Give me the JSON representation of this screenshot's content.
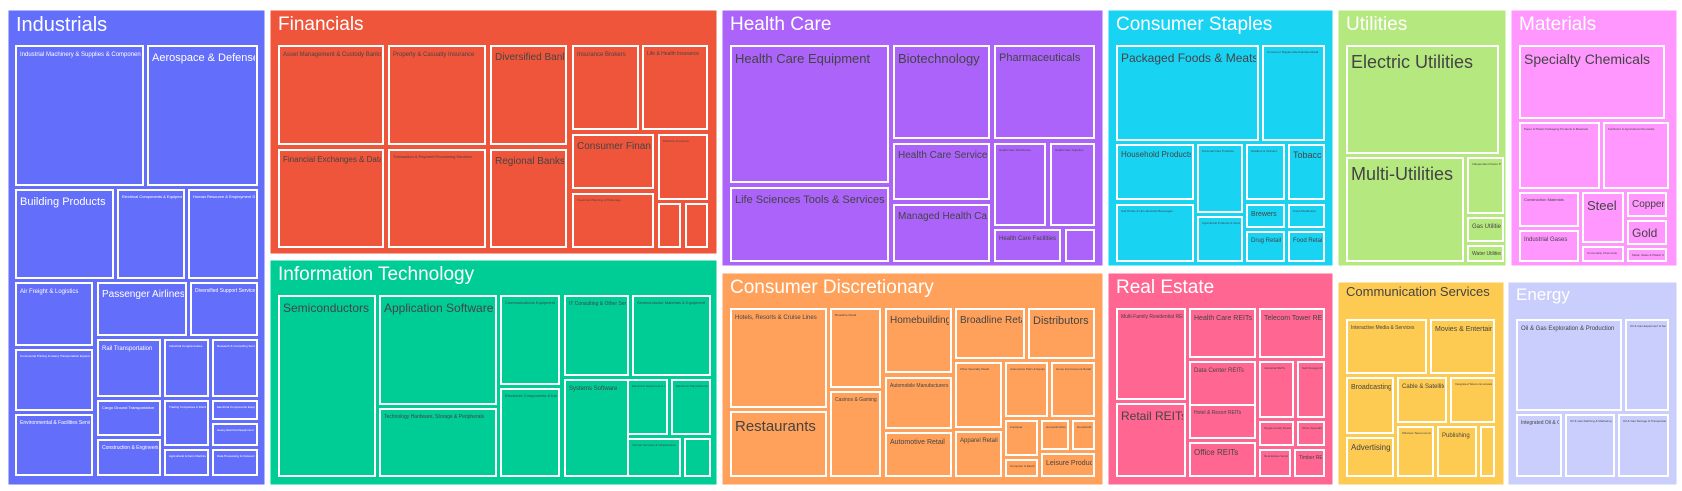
{
  "chart_data": {
    "type": "treemap",
    "title": "",
    "sectors": [
      {
        "name": "Industrials",
        "color": "#636efa",
        "label_color": "#ffffff",
        "industries": [
          "Industrial Machinery & Supplies & Components",
          "Aerospace & Defense",
          "Building Products",
          "Electrical Components & Equipment",
          "Human Resource & Employment Services",
          "Air Freight & Logistics",
          "Passenger Airlines",
          "Diversified Support Services",
          "Commercial Printing & Heavy Transportation Equipment",
          "Rail Transportation",
          "Industrial Conglomerates",
          "Research & Consulting Services",
          "Cargo Ground Transportation",
          "Trading Companies & Distributors",
          "Environmental & Facilities Services",
          "Construction & Engineering",
          "Agricultural & Farm Machinery",
          "Electrical Components Equipment",
          "Heavy Electrical Equipment",
          "Data Processing & Outsourced Services"
        ]
      },
      {
        "name": "Financials",
        "color": "#ef553b",
        "label_color": "#ffffff",
        "industries": [
          "Asset Management & Custody Banks",
          "Property & Casualty Insurance",
          "Diversified Banks",
          "Insurance Brokers",
          "Life & Health Insurance",
          "Financial Exchanges & Data",
          "Transaction & Payment Processing Services",
          "Regional Banks",
          "Consumer Finance",
          "Multi-line Insurance",
          "Investment Banking & Brokerage",
          "",
          ""
        ]
      },
      {
        "name": "Health Care",
        "color": "#ab63fa",
        "label_color": "#ffffff",
        "industries": [
          "Health Care Equipment",
          "Biotechnology",
          "Pharmaceuticals",
          "Life Sciences Tools & Services",
          "Health Care Services",
          "Managed Health Care",
          "Health Care Distributors",
          "Health Care Supplies",
          "Health Care Facilities",
          "Health Care Technology"
        ]
      },
      {
        "name": "Consumer Staples",
        "color": "#19d3f3",
        "label_color": "#ffffff",
        "industries": [
          "Packaged Foods & Meats",
          "Consumer Staples Merchandise Retail",
          "Household Products",
          "Personal Care Products",
          "Distillers & Vintners",
          "Tobacco",
          "Soft Drinks & Non-alcoholic Beverages",
          "Agricultural Products & Services",
          "Brewers",
          "Food Distributors",
          "Drug Retail",
          "Food Retail"
        ]
      },
      {
        "name": "Utilities",
        "color": "#b6e880",
        "label_color": "#ffffff",
        "industries": [
          "Electric Utilities",
          "Multi-Utilities",
          "Independent Power Producers",
          "Gas Utilities",
          "Water Utilities"
        ]
      },
      {
        "name": "Materials",
        "color": "#ff97ff",
        "label_color": "#ffffff",
        "industries": [
          "Specialty Chemicals",
          "Paper & Plastic Packaging Products & Materials",
          "Fertilizers & Agricultural Chemicals",
          "Construction Materials",
          "Steel",
          "Copper",
          "Industrial Gases",
          "Gold",
          "Commodity Chemicals",
          "Metal, Glass & Plastic Containers"
        ]
      },
      {
        "name": "Information Technology",
        "color": "#00cc96",
        "label_color": "#ffffff",
        "industries": [
          "Semiconductors",
          "Application Software",
          "Communications Equipment",
          "IT Consulting & Other Services",
          "Semiconductor Materials & Equipment",
          "Technology Hardware, Storage & Peripherals",
          "Electronic Components & Instruments",
          "Systems Software",
          "Electronic Equipment & Instruments",
          "Electronic Manufacturing Services",
          "Internet Services & Infrastructure",
          "Technology Distributors"
        ]
      },
      {
        "name": "Consumer Discretionary",
        "color": "#ffa15a",
        "label_color": "#ffffff",
        "industries": [
          "Hotels, Resorts & Cruise Lines",
          "Broadline Retail",
          "Homebuilding",
          "Broadline Retail",
          "Distributors",
          "Restaurants",
          "Casinos & Gaming",
          "Automobile Manufacturers",
          "Other Specialty Retail",
          "Automotive Parts & Equipment",
          "Home Improvement Retail",
          "Automotive Retail",
          "Apparel Retail",
          "Leisure Products",
          "Footwear",
          "Homefurnishing Retail",
          "Computer & Electronics Retail",
          "Household Appliances"
        ]
      },
      {
        "name": "Real Estate",
        "color": "#ff6692",
        "label_color": "#ffffff",
        "industries": [
          "Multi-Family Residential REITs",
          "Health Care REITs",
          "Telecom Tower REITs",
          "Data Center REITs",
          "Retail REITs",
          "Hotel & Resort REITs",
          "Office REITs",
          "Industrial REITs",
          "Self-Storage REITs",
          "Single-Family Residential REITs",
          "Other Specialized REITs",
          "Real Estate Services",
          "Timber REITs"
        ]
      },
      {
        "name": "Communication Services",
        "color": "#fecb52",
        "label_color": "#444444",
        "industries": [
          "Interactive Media & Services",
          "Movies & Entertainment",
          "Broadcasting",
          "Cable & Satellite",
          "Integrated Telecommunication Services",
          "Advertising",
          "Wireless Telecommunication Services",
          "Publishing",
          ""
        ]
      },
      {
        "name": "Energy",
        "color": "#c9cefc",
        "label_color": "#ffffff",
        "industries": [
          "Oil & Gas Exploration & Production",
          "Oil & Gas Equipment & Services",
          "Integrated Oil & Gas",
          "Oil & Gas Refining & Marketing",
          "Oil & Gas Storage & Transportation"
        ]
      }
    ]
  }
}
